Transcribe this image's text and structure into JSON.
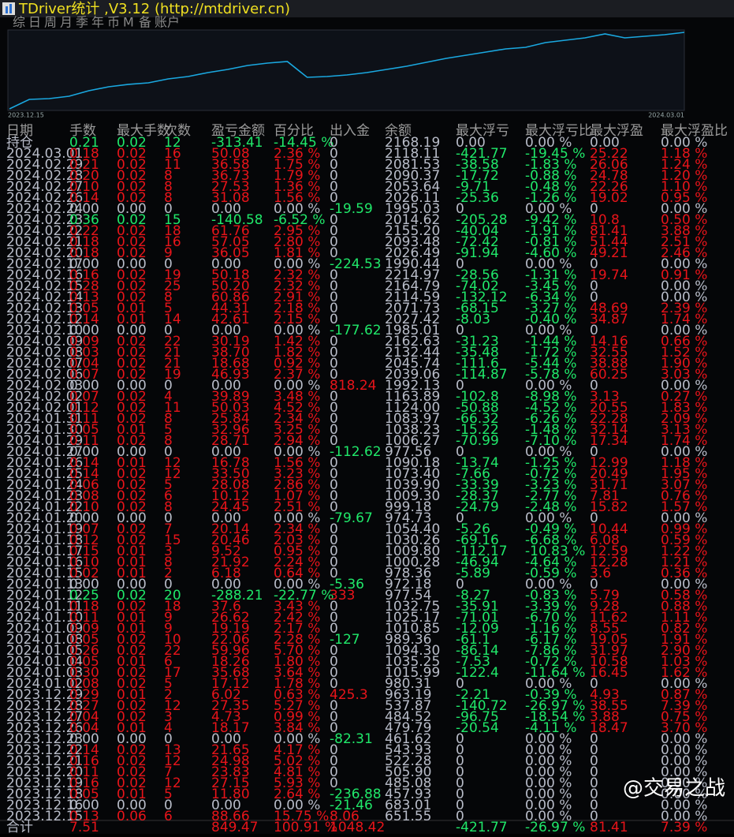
{
  "window": {
    "title": "TDriver统计 ,V3.12 (http://mtdriver.cn)",
    "tabs": [
      "综",
      "日",
      "周",
      "月",
      "季",
      "年",
      "币",
      "M",
      "备",
      "账户"
    ]
  },
  "equity_chart": {
    "start_label": "2023.12.15",
    "end_label": "2024.03.01",
    "color": "#1aa8e0",
    "values": [
      1000,
      1144,
      1157,
      1193,
      1277,
      1337,
      1374,
      1397,
      1458,
      1494,
      1554,
      1602,
      1662,
      1698,
      1722,
      1482,
      1494,
      1518,
      1554,
      1602,
      1650,
      1710,
      1771,
      1819,
      1867,
      1915,
      1939,
      2011,
      2048,
      2084,
      2144,
      2084,
      2108,
      2132,
      2168
    ]
  },
  "table": {
    "columns": [
      "日期",
      "手数",
      "最大手数",
      "次数",
      "盈亏金额",
      "百分比",
      "出入金",
      "余额",
      "最大浮亏",
      "最大浮亏比",
      "最大浮盈",
      "最大浮盈比"
    ],
    "rows": [
      [
        "持仓",
        "0.21",
        "0.02",
        "12",
        "-313.41",
        "-14.45 %",
        "0",
        "2168.19",
        "0.00",
        "0.00 %",
        "0.00",
        "0.00 %"
      ],
      [
        "2024.03.01",
        "0.18",
        "0.02",
        "16",
        "50.08",
        "2.36 %",
        "0",
        "2118.11",
        "-421.77",
        "-19.45 %",
        "25.22",
        "1.18 %"
      ],
      [
        "2024.02.29",
        "0.21",
        "0.02",
        "11",
        "36.58",
        "1.75 %",
        "0",
        "2081.53",
        "-38.58",
        "-1.83 %",
        "26.06",
        "1.24 %"
      ],
      [
        "2024.02.28",
        "0.20",
        "0.02",
        "8",
        "36.73",
        "1.79 %",
        "0",
        "2090.37",
        "-17.72",
        "-0.88 %",
        "24.78",
        "1.20 %"
      ],
      [
        "2024.02.27",
        "0.10",
        "0.02",
        "8",
        "27.53",
        "1.36 %",
        "0",
        "2053.64",
        "-9.71",
        "-0.48 %",
        "22.26",
        "1.10 %"
      ],
      [
        "2024.02.26",
        "0.14",
        "0.02",
        "8",
        "31.08",
        "1.56 %",
        "0",
        "2026.11",
        "-25.36",
        "-1.26 %",
        "19.02",
        "0.95 %"
      ],
      [
        "2024.02.24",
        "0.00",
        "0.00",
        "0",
        "0.00",
        "0.00 %",
        "-19.59",
        "1995.03",
        "0",
        "0.00 %",
        "0",
        "0.00 %"
      ],
      [
        "2024.02.23",
        "0.36",
        "0.02",
        "15",
        "-140.58",
        "-6.52 %",
        "0",
        "2014.62",
        "-205.28",
        "-9.42 %",
        "10.8",
        "0.50 %"
      ],
      [
        "2024.02.22",
        "0.22",
        "0.02",
        "18",
        "61.76",
        "2.95 %",
        "0",
        "2155.20",
        "-40.04",
        "-1.91 %",
        "81.41",
        "3.88 %"
      ],
      [
        "2024.02.21",
        "0.18",
        "0.02",
        "16",
        "57.05",
        "2.80 %",
        "0",
        "2093.48",
        "-72.42",
        "-0.81 %",
        "51.44",
        "2.51 %"
      ],
      [
        "2024.02.20",
        "0.18",
        "0.02",
        "9",
        "36.05",
        "1.81 %",
        "0",
        "2026.49",
        "-91.94",
        "-4.60 %",
        "49.21",
        "2.46 %"
      ],
      [
        "2024.02.17",
        "0.00",
        "0.00",
        "0",
        "0.00",
        "0.00 %",
        "-224.53",
        "1990.44",
        "0",
        "0.00 %",
        "0",
        "0.00 %"
      ],
      [
        "2024.02.16",
        "0.16",
        "0.02",
        "19",
        "50.18",
        "2.32 %",
        "0",
        "2214.97",
        "-28.56",
        "-1.31 %",
        "19.74",
        "0.91 %"
      ],
      [
        "2024.02.15",
        "0.28",
        "0.02",
        "25",
        "50.20",
        "2.32 %",
        "0",
        "2164.79",
        "-74.02",
        "-3.45 %",
        "0",
        "0.00 %"
      ],
      [
        "2024.02.14",
        "0.13",
        "0.02",
        "8",
        "60.86",
        "2.91 %",
        "0",
        "2114.59",
        "-132.12",
        "-6.34 %",
        "0",
        "0.00 %"
      ],
      [
        "2024.02.13",
        "0.05",
        "0.01",
        "5",
        "44.31",
        "2.18 %",
        "0",
        "2071.73",
        "-68.15",
        "-3.27 %",
        "48.69",
        "2.39 %"
      ],
      [
        "2024.02.12",
        "0.14",
        "0.01",
        "14",
        "42.61",
        "2.15 %",
        "0",
        "2027.42",
        "-8.03",
        "-0.40 %",
        "34.87",
        "1.74 %"
      ],
      [
        "2024.02.10",
        "0.00",
        "0.00",
        "0",
        "0.00",
        "0.00 %",
        "-177.62",
        "1985.01",
        "0",
        "0.00 %",
        "0",
        "0.00 %"
      ],
      [
        "2024.02.09",
        "0.09",
        "0.02",
        "22",
        "30.19",
        "1.42 %",
        "0",
        "2162.63",
        "-31.23",
        "-1.44 %",
        "14.16",
        "0.66 %"
      ],
      [
        "2024.02.08",
        "0.03",
        "0.02",
        "21",
        "38.70",
        "1.82 %",
        "0",
        "2132.44",
        "-35.48",
        "-1.72 %",
        "32.55",
        "1.52 %"
      ],
      [
        "2024.02.07",
        "0.04",
        "0.02",
        "21",
        "18.68",
        "0.92 %",
        "0",
        "2045.74",
        "-111.6",
        "-5.44 %",
        "38.88",
        "1.90 %"
      ],
      [
        "2024.02.06",
        "0.07",
        "0.02",
        "19",
        "46.93",
        "2.37 %",
        "0",
        "2039.06",
        "-114.87",
        "-5.78 %",
        "60.25",
        "3.03 %"
      ],
      [
        "2024.02.03",
        "0.00",
        "0.00",
        "0",
        "0.00",
        "0.00 %",
        "818.24",
        "1992.13",
        "0",
        "0.00 %",
        "0",
        "0.00 %"
      ],
      [
        "2024.02.02",
        "0.07",
        "0.02",
        "4",
        "39.89",
        "3.48 %",
        "0",
        "1163.89",
        "-102.8",
        "-8.98 %",
        "3.13",
        "0.27 %"
      ],
      [
        "2024.02.01",
        "0.12",
        "0.02",
        "11",
        "50.03",
        "4.52 %",
        "0",
        "1124.00",
        "-50.88",
        "-4.52 %",
        "20.55",
        "1.83 %"
      ],
      [
        "2024.01.31",
        "0.11",
        "0.02",
        "8",
        "25.84",
        "2.34 %",
        "0",
        "1083.97",
        "-66.32",
        "-6.26 %",
        "22.28",
        "2.09 %"
      ],
      [
        "2024.01.30",
        "0.05",
        "0.01",
        "5",
        "32.96",
        "3.25 %",
        "0",
        "1038.23",
        "-15.22",
        "-1.48 %",
        "32.14",
        "3.13 %"
      ],
      [
        "2024.01.29",
        "0.11",
        "0.02",
        "8",
        "28.71",
        "2.94 %",
        "0",
        "1006.27",
        "-70.99",
        "-7.10 %",
        "17.34",
        "1.74 %"
      ],
      [
        "2024.01.27",
        "0.00",
        "0.00",
        "0",
        "0.00",
        "0.00 %",
        "-112.62",
        "977.56",
        "0",
        "0.00 %",
        "0",
        "0.00 %"
      ],
      [
        "2024.01.26",
        "0.14",
        "0.01",
        "12",
        "16.78",
        "1.56 %",
        "0",
        "1090.18",
        "-13.74",
        "-1.25 %",
        "12.99",
        "1.18 %"
      ],
      [
        "2024.01.25",
        "0.14",
        "0.02",
        "12",
        "33.50",
        "3.23 %",
        "0",
        "1073.40",
        "-7.66",
        "-0.72 %",
        "20.49",
        "1.95 %"
      ],
      [
        "2024.01.24",
        "0.06",
        "0.02",
        "5",
        "28.08",
        "2.86 %",
        "0",
        "1039.90",
        "-33.39",
        "-3.23 %",
        "31.71",
        "3.07 %"
      ],
      [
        "2024.01.23",
        "0.08",
        "0.02",
        "6",
        "10.12",
        "1.07 %",
        "0",
        "1009.30",
        "-28.37",
        "-2.77 %",
        "7.81",
        "0.76 %"
      ],
      [
        "2024.01.22",
        "0.10",
        "0.02",
        "8",
        "24.45",
        "2.51 %",
        "0",
        "999.18",
        "-24.79",
        "-2.48 %",
        "15.82",
        "1.57 %"
      ],
      [
        "2024.01.20",
        "0.00",
        "0.00",
        "0",
        "0.00",
        "0.00 %",
        "-79.67",
        "974.73",
        "0",
        "0.00 %",
        "0",
        "0.00 %"
      ],
      [
        "2024.01.19",
        "0.07",
        "0.02",
        "7",
        "20.14",
        "2.34 %",
        "0",
        "1054.40",
        "-5.26",
        "-0.49 %",
        "10.44",
        "0.99 %"
      ],
      [
        "2024.01.18",
        "0.12",
        "0.02",
        "15",
        "20.46",
        "2.03 %",
        "0",
        "1030.26",
        "-69.16",
        "-6.68 %",
        "6.08",
        "0.59 %"
      ],
      [
        "2024.01.17",
        "0.15",
        "0.01",
        "3",
        "9.52",
        "0.95 %",
        "0",
        "1009.80",
        "-112.17",
        "-10.83 %",
        "12.59",
        "1.22 %"
      ],
      [
        "2024.01.16",
        "0.10",
        "0.01",
        "8",
        "21.92",
        "2.24 %",
        "0",
        "1000.28",
        "-46.94",
        "-4.64 %",
        "12.28",
        "1.21 %"
      ],
      [
        "2024.01.15",
        "0.02",
        "0.01",
        "2",
        "6.18",
        "0.64 %",
        "0",
        "978.36",
        "-5.89",
        "-0.59 %",
        "3.6",
        "0.36 %"
      ],
      [
        "2024.01.13",
        "0.00",
        "0.00",
        "0",
        "0.00",
        "0.00 %",
        "-5.36",
        "972.18",
        "0",
        "0.00 %",
        "0",
        "0.00 %"
      ],
      [
        "2024.01.12",
        "0.25",
        "0.02",
        "20",
        "-288.21",
        "-22.77 %",
        "333",
        "977.54",
        "-8.27",
        "-0.83 %",
        "5.79",
        "0.58 %"
      ],
      [
        "2024.01.11",
        "0.18",
        "0.02",
        "18",
        "37.6",
        "3.43 %",
        "0",
        "1032.75",
        "-35.91",
        "-3.39 %",
        "9.28",
        "0.88 %"
      ],
      [
        "2024.01.10",
        "0.11",
        "0.01",
        "9",
        "26.62",
        "2.42 %",
        "0",
        "1025.17",
        "-71.01",
        "-6.70 %",
        "11.62",
        "1.11 %"
      ],
      [
        "2024.01.09",
        "0.09",
        "0.01",
        "9",
        "19.19",
        "2.17 %",
        "0",
        "1010.85",
        "-12.09",
        "-1.16 %",
        "8.55",
        "0.82 %"
      ],
      [
        "2024.01.08",
        "0.05",
        "0.02",
        "10",
        "22.06",
        "2.28 %",
        "-127",
        "989.36",
        "-61.1",
        "-6.17 %",
        "19.05",
        "1.91 %"
      ],
      [
        "2024.01.05",
        "0.26",
        "0.02",
        "22",
        "59.96",
        "5.70 %",
        "0",
        "1094.30",
        "-86.14",
        "-7.86 %",
        "31.97",
        "2.90 %"
      ],
      [
        "2024.01.04",
        "0.05",
        "0.01",
        "6",
        "18.26",
        "1.80 %",
        "0",
        "1035.25",
        "-7.53",
        "-0.72 %",
        "10.58",
        "1.03 %"
      ],
      [
        "2024.01.03",
        "0.30",
        "0.02",
        "17",
        "35.68",
        "3.64 %",
        "0",
        "1015.99",
        "-122.4",
        "-11.64 %",
        "16.45",
        "1.62 %"
      ],
      [
        "2024.01.02",
        "0.08",
        "0.02",
        "5",
        "17.12",
        "1.78 %",
        "0",
        "980.31",
        "0",
        "0.00 %",
        "0",
        "0.00 %"
      ],
      [
        "2023.12.29",
        "0.29",
        "0.01",
        "2",
        "6.02",
        "0.63 %",
        "425.3",
        "963.19",
        "-2.21",
        "-0.39 %",
        "4.93",
        "0.87 %"
      ],
      [
        "2023.12.28",
        "0.27",
        "0.02",
        "12",
        "27.35",
        "5.27 %",
        "0",
        "537.87",
        "-140.72",
        "-26.97 %",
        "38.55",
        "7.39 %"
      ],
      [
        "2023.12.27",
        "0.04",
        "0.02",
        "3",
        "4.73",
        "0.99 %",
        "0",
        "484.52",
        "-96.75",
        "-18.54 %",
        "3.88",
        "0.75 %"
      ],
      [
        "2023.12.26",
        "0.04",
        "0.01",
        "4",
        "18.17",
        "3.84 %",
        "0",
        "479.79",
        "-20.54",
        "-4.11 %",
        "18.47",
        "3.70 %"
      ],
      [
        "2023.12.23",
        "0.00",
        "0.00",
        "0",
        "0.00",
        "0.00 %",
        "-82.31",
        "461.62",
        "0",
        "0.00 %",
        "0",
        "0.00 %"
      ],
      [
        "2023.12.22",
        "0.14",
        "0.02",
        "13",
        "21.65",
        "4.17 %",
        "0",
        "543.93",
        "0",
        "0.00 %",
        "0",
        "0.00 %"
      ],
      [
        "2023.12.21",
        "0.16",
        "0.02",
        "12",
        "24.98",
        "5.02 %",
        "0",
        "522.28",
        "0",
        "0.00 %",
        "0",
        "0.00 %"
      ],
      [
        "2023.12.20",
        "0.11",
        "0.02",
        "7",
        "23.83",
        "4.81 %",
        "0",
        "505.90",
        "0",
        "0.00 %",
        "0",
        "0.00 %"
      ],
      [
        "2023.12.19",
        "0.16",
        "0.02",
        "12",
        "27.15",
        "5.93 %",
        "0",
        "485.08",
        "0",
        "0.00 %",
        "0",
        "0.00 %"
      ],
      [
        "2023.12.18",
        "0.05",
        "0.01",
        "5",
        "11.80",
        "2.64 %",
        "-236.88",
        "457.93",
        "0",
        "0.00 %",
        "0",
        "0.00 %"
      ],
      [
        "2023.12.16",
        "0.00",
        "0.00",
        "0",
        "0.00",
        "0.00 %",
        "-21.46",
        "683.01",
        "0",
        "0.00 %",
        "0",
        "0.00 %"
      ],
      [
        "2023.12.15",
        "0.13",
        "0.06",
        "6",
        "88.66",
        "15.75 %",
        "8.06",
        "651.55",
        "0",
        "0.00 %",
        "0",
        "0.00 %"
      ]
    ],
    "total": [
      "合计",
      "7.51",
      "849.47",
      "100.91 %",
      "1048.42",
      "-421.77",
      "-26.97 %",
      "81.41",
      "7.39 %"
    ]
  },
  "watermark": "@交易之战"
}
